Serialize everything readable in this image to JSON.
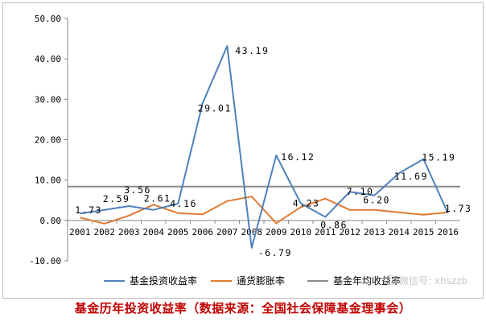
{
  "chart_data": {
    "type": "line",
    "title": "",
    "xlabel": "",
    "ylabel": "",
    "categories": [
      "2001",
      "2002",
      "2003",
      "2004",
      "2005",
      "2006",
      "2007",
      "2008",
      "2009",
      "2010",
      "2011",
      "2012",
      "2013",
      "2014",
      "2015",
      "2016"
    ],
    "ylim": [
      -10,
      50
    ],
    "yticks": [
      "-10.00",
      "0.00",
      "10.00",
      "20.00",
      "30.00",
      "40.00",
      "50.00"
    ],
    "grid": false,
    "legend_position": "bottom",
    "series": [
      {
        "name": "基金投资收益率",
        "color": "#4f81bd",
        "values": [
          1.73,
          2.59,
          3.56,
          2.61,
          4.16,
          29.01,
          43.19,
          -6.79,
          16.12,
          4.23,
          0.86,
          7.1,
          6.2,
          11.69,
          15.19,
          1.73
        ],
        "labels": [
          "1.73",
          "2.59",
          "3.56",
          "2.61",
          "4.16",
          "29.01",
          "43.19",
          "-6.79",
          "16.12",
          "4.23",
          "0.86",
          "7.10",
          "6.20",
          "11.69",
          "15.19",
          "1.73"
        ]
      },
      {
        "name": "通货膨胀率",
        "color": "#e07a30",
        "values": [
          0.7,
          -0.8,
          1.2,
          3.9,
          1.8,
          1.5,
          4.8,
          5.9,
          -0.7,
          3.3,
          5.4,
          2.6,
          2.6,
          2.0,
          1.4,
          2.0
        ]
      },
      {
        "name": "基金年均收益率",
        "color": "#8c8c8c",
        "values": [
          8.4,
          8.4,
          8.4,
          8.4,
          8.4,
          8.4,
          8.4,
          8.4,
          8.4,
          8.4,
          8.4,
          8.4,
          8.4,
          8.4,
          8.4,
          8.4
        ]
      }
    ]
  },
  "caption": "基金历年投资收益率（数据来源：全国社会保障基金理事会）",
  "watermark": "微信号: xhszzb"
}
